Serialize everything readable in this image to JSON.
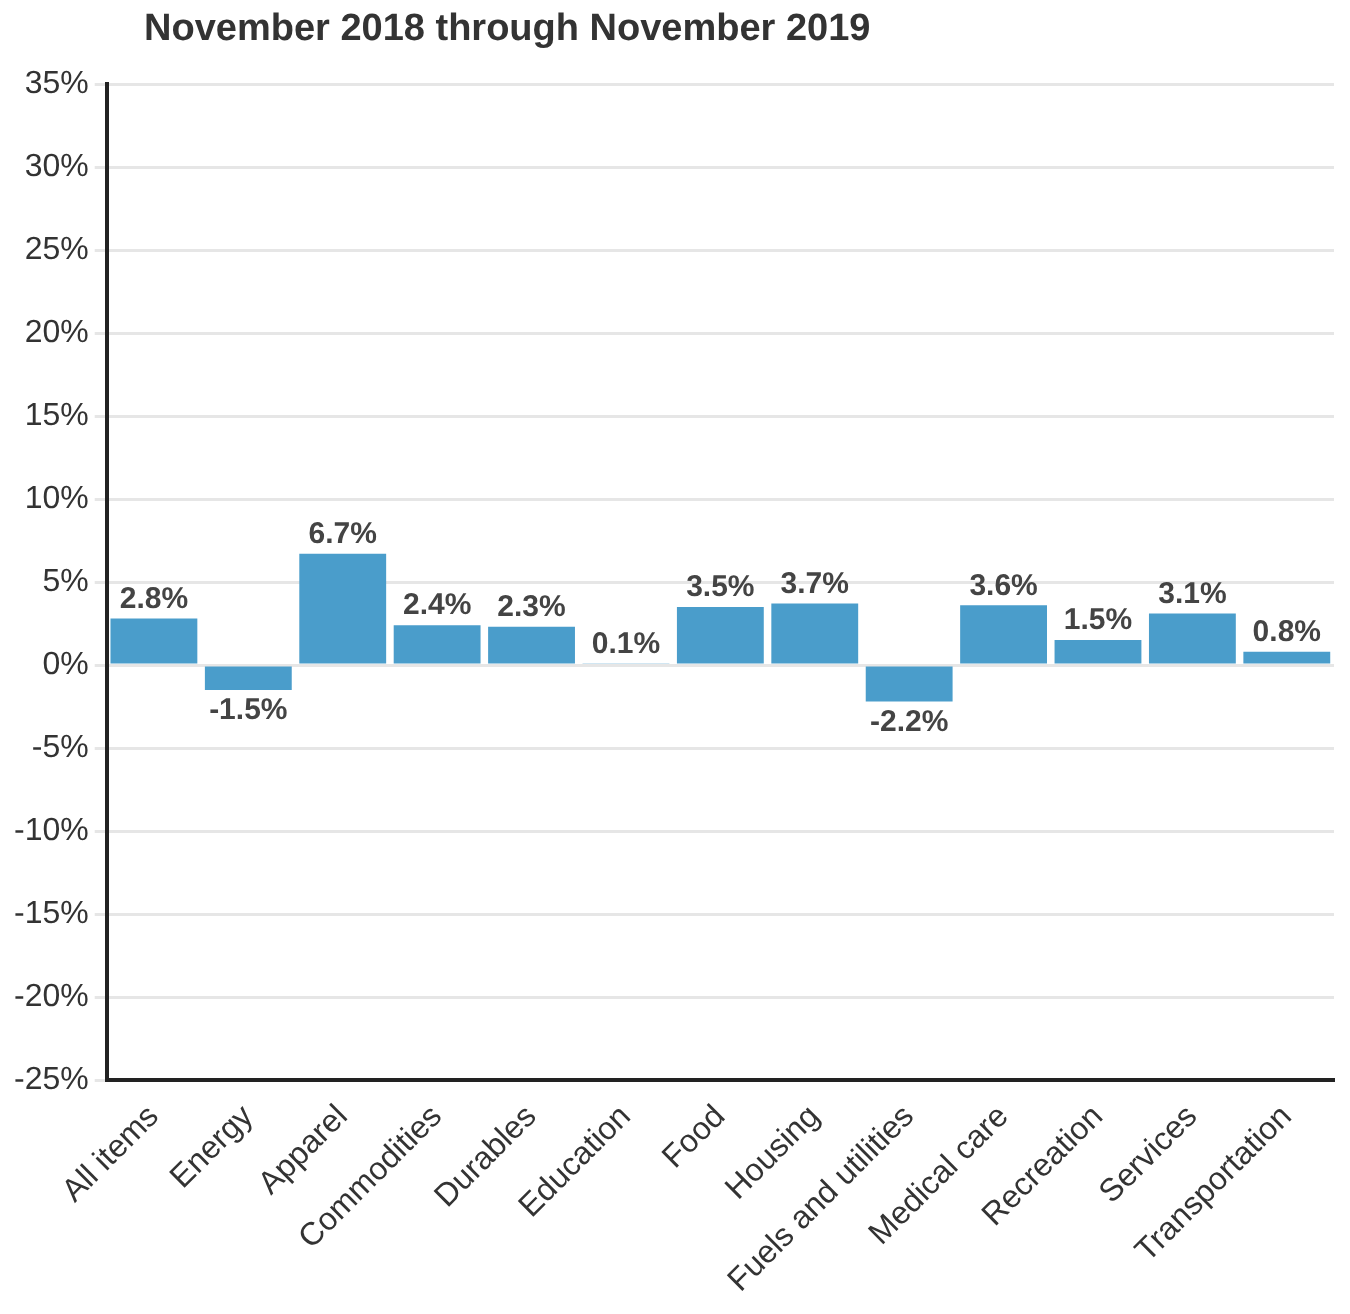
{
  "chart_data": {
    "type": "bar",
    "title": "November 2018 through November 2019",
    "categories": [
      "All items",
      "Energy",
      "Apparel",
      "Commodities",
      "Durables",
      "Education",
      "Food",
      "Housing",
      "Fuels and utilities",
      "Medical care",
      "Recreation",
      "Services",
      "Transportation"
    ],
    "values": [
      2.8,
      -1.5,
      6.7,
      2.4,
      2.3,
      0.1,
      3.5,
      3.7,
      -2.2,
      3.6,
      1.5,
      3.1,
      0.8
    ],
    "value_labels": [
      "2.8%",
      "-1.5%",
      "6.7%",
      "2.4%",
      "2.3%",
      "0.1%",
      "3.5%",
      "3.7%",
      "-2.2%",
      "3.6%",
      "1.5%",
      "3.1%",
      "0.8%"
    ],
    "color": "#4a9dcb",
    "ylim": [
      -25,
      35
    ],
    "yticks": [
      {
        "value": -25,
        "label": "-25%"
      },
      {
        "value": -20,
        "label": "-20%"
      },
      {
        "value": -15,
        "label": "-15%"
      },
      {
        "value": -10,
        "label": "-10%"
      },
      {
        "value": -5,
        "label": "-5%"
      },
      {
        "value": 0,
        "label": "0%"
      },
      {
        "value": 5,
        "label": "5%"
      },
      {
        "value": 10,
        "label": "10%"
      },
      {
        "value": 15,
        "label": "15%"
      },
      {
        "value": 20,
        "label": "20%"
      },
      {
        "value": 25,
        "label": "25%"
      },
      {
        "value": 30,
        "label": "30%"
      },
      {
        "value": 35,
        "label": "35%"
      }
    ],
    "grid": "y"
  }
}
